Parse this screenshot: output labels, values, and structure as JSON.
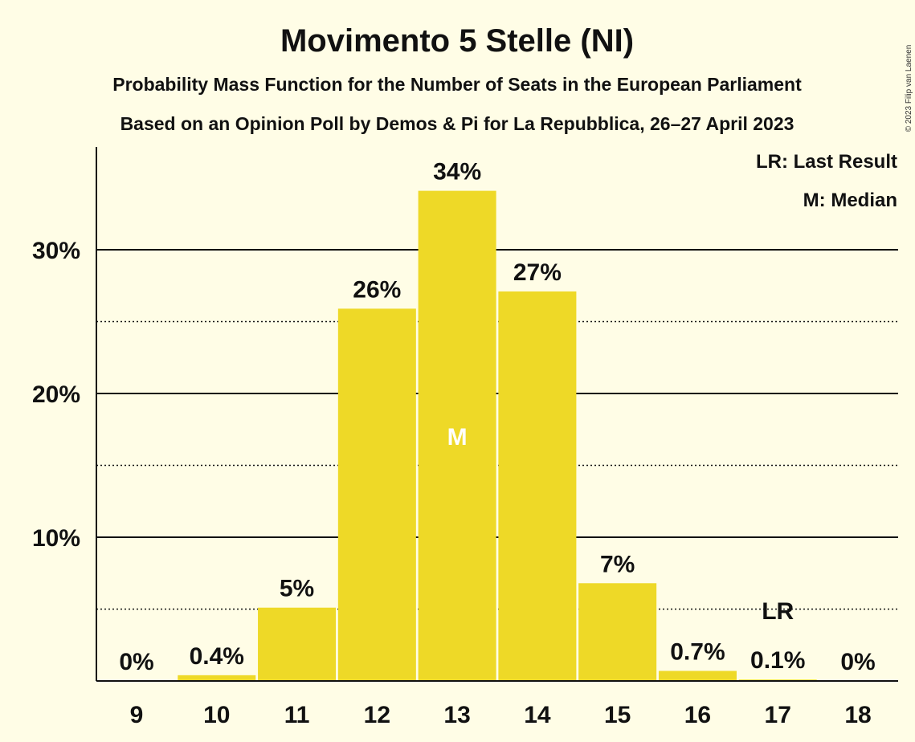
{
  "chart_data": {
    "type": "bar",
    "title": "Movimento 5 Stelle (NI)",
    "subtitle": "Probability Mass Function for the Number of Seats in the European Parliament",
    "source": "Based on an Opinion Poll by Demos & Pi for La Repubblica, 26–27 April 2023",
    "copyright": "© 2023 Filip van Laenen",
    "categories": [
      "9",
      "10",
      "11",
      "12",
      "13",
      "14",
      "15",
      "16",
      "17",
      "18"
    ],
    "values": [
      0,
      0.4,
      5.1,
      25.9,
      34.1,
      27.1,
      6.8,
      0.7,
      0.1,
      0
    ],
    "data_labels": [
      "0%",
      "0.4%",
      "5%",
      "26%",
      "34%",
      "27%",
      "7%",
      "0.7%",
      "0.1%",
      "0%"
    ],
    "ylim": [
      0,
      37
    ],
    "yticks": [
      10,
      20,
      30
    ],
    "ytick_labels": [
      "10%",
      "20%",
      "30%"
    ],
    "minor_gridlines": [
      5,
      15,
      25
    ],
    "median_category": "13",
    "median_marker": "M",
    "last_result_category": "17",
    "last_result_marker": "LR",
    "legend": [
      "LR: Last Result",
      "M: Median"
    ],
    "legend_placement": "top-right",
    "bar_color": "#eed927",
    "background_color": "#fffde6"
  }
}
